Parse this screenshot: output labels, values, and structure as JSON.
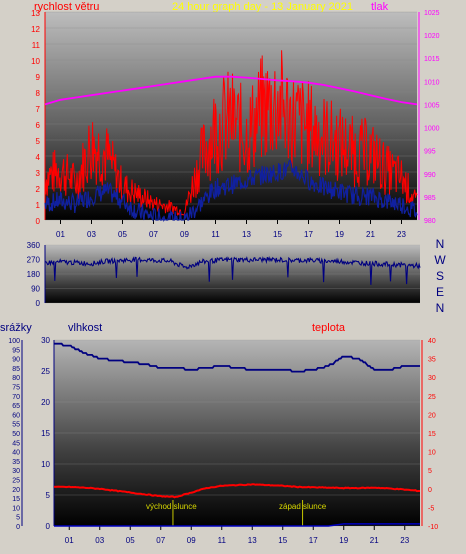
{
  "header": {
    "left_label": "rychlost větru",
    "title": "24 hour graph day - 13 January 2021",
    "right_label": "tlak"
  },
  "colors": {
    "wind": "#ff0000",
    "gust_overlay": "#1020a0",
    "pressure": "#ff00ff",
    "direction": "#000080",
    "humidity": "#000080",
    "temperature": "#ff0000",
    "rain": "#0000c0",
    "sun": "#c8c800",
    "left_axis": "#ff0000",
    "right_axis": "#ff00ff",
    "bg_frame": "#d4d0c8",
    "plot_bg_top": "#a0a0a0",
    "plot_bg_bottom": "#000000"
  },
  "chart_data": [
    {
      "type": "line",
      "title": "24 hour graph day - 13 January 2021",
      "xlabel": "",
      "ylabel": "rychlost větru",
      "y2label": "tlak",
      "x_ticks": [
        "01",
        "03",
        "05",
        "07",
        "09",
        "11",
        "13",
        "15",
        "17",
        "19",
        "21",
        "23"
      ],
      "y_ticks": [
        "0",
        "1",
        "2",
        "3",
        "4",
        "5",
        "6",
        "7",
        "8",
        "9",
        "10",
        "11",
        "12",
        "13"
      ],
      "y2_ticks": [
        "980",
        "985",
        "990",
        "995",
        "1000",
        "1005",
        "1010",
        "1015",
        "1020",
        "1025"
      ],
      "ylim": [
        0,
        13
      ],
      "y2lim": [
        980,
        1025
      ],
      "hours": [
        0,
        1,
        2,
        3,
        4,
        5,
        6,
        7,
        8,
        9,
        10,
        11,
        12,
        13,
        14,
        15,
        16,
        17,
        18,
        19,
        20,
        21,
        22,
        23,
        24
      ],
      "series": [
        {
          "name": "",
          "axis": "left",
          "values": [
            2.5,
            3.0,
            2.2,
            4.5,
            3.8,
            2.0,
            1.5,
            1.0,
            0.8,
            0.5,
            3.5,
            5.5,
            6.0,
            5.0,
            6.5,
            7.0,
            6.0,
            5.5,
            5.0,
            4.5,
            4.0,
            4.0,
            3.0,
            2.5,
            1.0
          ]
        },
        {
          "name": "",
          "axis": "left",
          "values": [
            1.0,
            1.2,
            1.0,
            1.5,
            1.8,
            1.2,
            0.5,
            0.2,
            0.0,
            0.0,
            1.0,
            2.0,
            2.2,
            2.5,
            2.8,
            3.0,
            3.2,
            2.5,
            2.0,
            1.8,
            1.5,
            1.5,
            1.2,
            1.0,
            0.5
          ]
        },
        {
          "name": "",
          "axis": "right",
          "values": [
            1005,
            1006,
            1006.5,
            1007,
            1007.5,
            1008,
            1008.5,
            1009,
            1009.5,
            1010,
            1010.5,
            1011,
            1011,
            1010.8,
            1010.5,
            1010.2,
            1010,
            1009.7,
            1009.2,
            1008.5,
            1007.8,
            1007,
            1006.2,
            1005.5,
            1005
          ]
        }
      ]
    },
    {
      "type": "line",
      "title": "",
      "y_ticks": [
        "0",
        "90",
        "180",
        "270",
        "360"
      ],
      "y2_ticks": [
        "N",
        "W",
        "S",
        "E",
        "N"
      ],
      "ylim": [
        0,
        360
      ],
      "hours": [
        0,
        1,
        2,
        3,
        4,
        5,
        6,
        7,
        8,
        9,
        10,
        11,
        12,
        13,
        14,
        15,
        16,
        17,
        18,
        19,
        20,
        21,
        22,
        23,
        24
      ],
      "series": [
        {
          "name": "",
          "values": [
            250,
            255,
            250,
            245,
            260,
            265,
            270,
            265,
            260,
            220,
            255,
            265,
            270,
            268,
            270,
            268,
            265,
            265,
            260,
            258,
            250,
            245,
            240,
            235,
            230
          ]
        }
      ]
    },
    {
      "type": "line",
      "title": "",
      "ylabel": "srážky",
      "left_inner_label": "vlhkost",
      "right_label": "teplota",
      "y_ticks": [
        "0",
        "5",
        "10",
        "15",
        "20",
        "25",
        "30",
        "35",
        "40",
        "45",
        "50",
        "55",
        "60",
        "65",
        "70",
        "75",
        "80",
        "85",
        "90",
        "95",
        "100"
      ],
      "y_inner_ticks": [
        "0",
        "5",
        "10",
        "15",
        "20",
        "25",
        "30"
      ],
      "y2_ticks": [
        "-10",
        "-5",
        "0",
        "5",
        "10",
        "15",
        "20",
        "25",
        "30",
        "35",
        "40"
      ],
      "ylim": [
        0,
        100
      ],
      "y_inner_lim": [
        0,
        30
      ],
      "y2lim": [
        -10,
        40
      ],
      "hours": [
        0,
        1,
        2,
        3,
        4,
        5,
        6,
        7,
        8,
        9,
        10,
        11,
        12,
        13,
        14,
        15,
        16,
        17,
        18,
        19,
        20,
        21,
        22,
        23,
        24
      ],
      "series": [
        {
          "name": "vlhkost",
          "axis": "left",
          "values": [
            98,
            97,
            93,
            90,
            89,
            88,
            87,
            85,
            85,
            84,
            85,
            86,
            85,
            84,
            84,
            84,
            83,
            84,
            86,
            91,
            90,
            84,
            84,
            86,
            86
          ]
        },
        {
          "name": "teplota",
          "axis": "right",
          "values": [
            0.5,
            0.5,
            0.3,
            0.0,
            -0.5,
            -1.0,
            -1.5,
            -2.0,
            -2.2,
            -1.0,
            0.2,
            0.8,
            1.0,
            1.2,
            1.0,
            0.8,
            0.5,
            0.4,
            0.3,
            0.2,
            0.2,
            0.3,
            0.1,
            -0.2,
            -0.6
          ]
        },
        {
          "name": "srážky",
          "axis": "left_inner",
          "values": [
            0,
            0,
            0,
            0,
            0,
            0,
            0,
            0,
            0,
            0,
            0,
            0,
            0,
            0,
            0,
            0,
            0,
            0,
            0,
            0.1,
            0.1,
            0.1,
            0.1,
            0.1,
            0.1
          ]
        }
      ],
      "annotations": [
        {
          "label": "východ slunce",
          "hour": 7.8
        },
        {
          "label": "západ slunce",
          "hour": 16.3
        }
      ]
    }
  ],
  "panel3_labels": {
    "rain": "srážky",
    "humidity": "vlhkost",
    "temperature": "teplota",
    "sunrise": "východ slunce",
    "sunset": "západ slunce"
  },
  "dir_letters": [
    "N",
    "W",
    "S",
    "E",
    "N"
  ]
}
